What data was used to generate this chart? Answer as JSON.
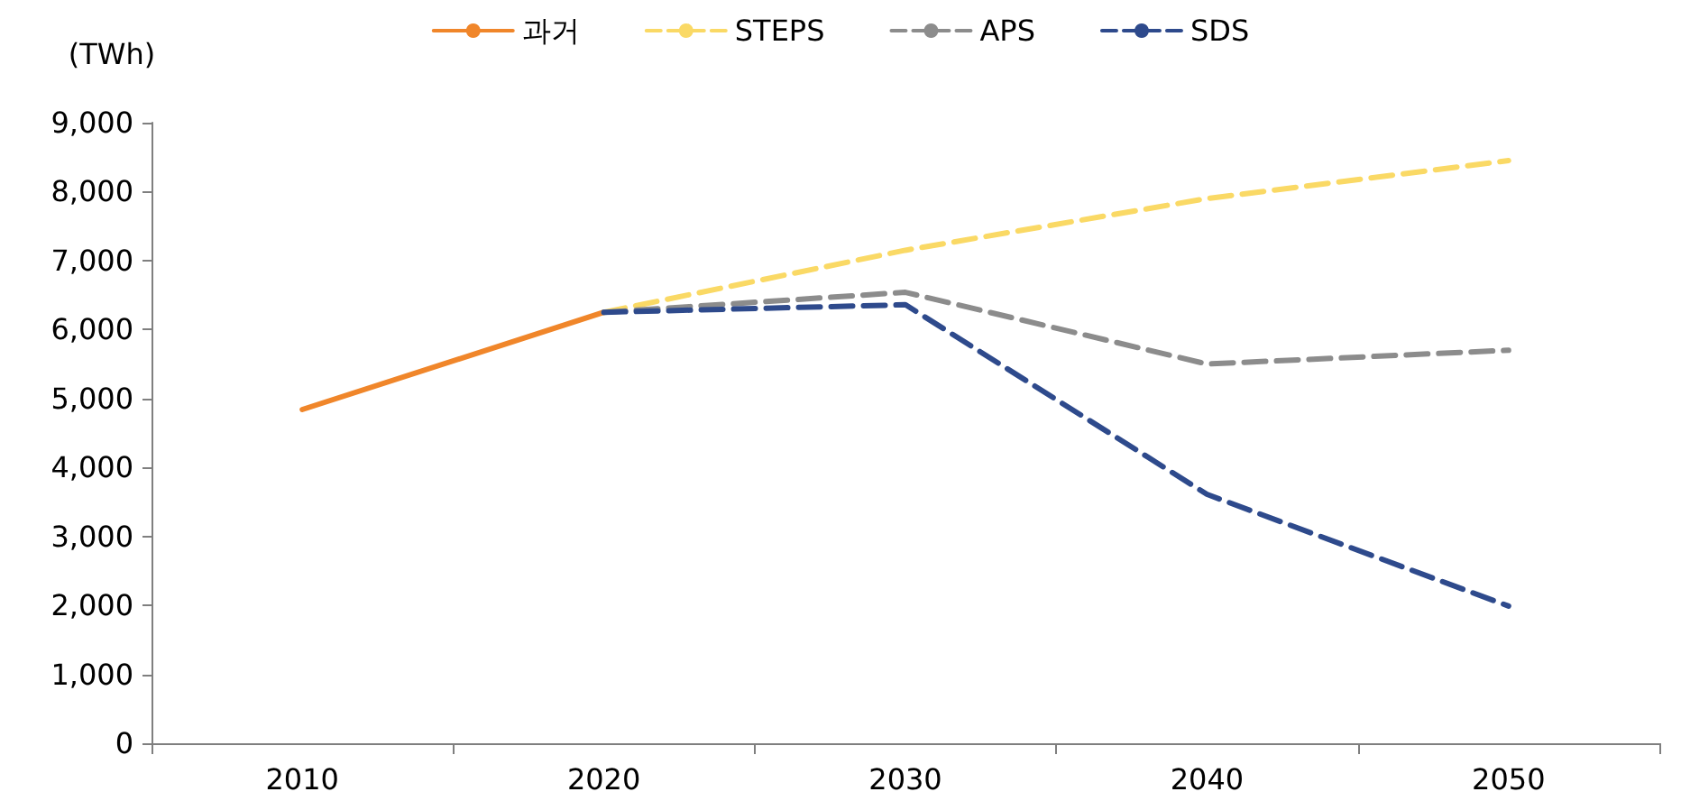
{
  "chart_data": {
    "type": "line",
    "ylabel": "(TWh)",
    "categories": [
      "2010",
      "2020",
      "2030",
      "2040",
      "2050"
    ],
    "series": [
      {
        "name": "과거",
        "color": "#f0862a",
        "line_style": "solid",
        "values": [
          4840,
          6250,
          null,
          null,
          null
        ]
      },
      {
        "name": "STEPS",
        "color": "#fad965",
        "line_style": "dashed",
        "values": [
          null,
          6250,
          7150,
          7900,
          8450
        ]
      },
      {
        "name": "APS",
        "color": "#8c8c8c",
        "line_style": "dashed",
        "values": [
          null,
          6250,
          6540,
          5500,
          5700
        ]
      },
      {
        "name": "SDS",
        "color": "#2e4a8c",
        "line_style": "dashed",
        "values": [
          null,
          6250,
          6360,
          3610,
          1990
        ]
      }
    ],
    "ylim": [
      0,
      9000
    ],
    "yticks": [
      0,
      {
        "value": 1000,
        "label": "1,000"
      },
      {
        "value": 2000,
        "label": "2,000"
      },
      {
        "value": 3000,
        "label": "3,000"
      },
      {
        "value": 4000,
        "label": "4,000"
      },
      {
        "value": 5000,
        "label": "5,000"
      },
      {
        "value": 6000,
        "label": "6,000"
      },
      {
        "value": 7000,
        "label": "7,000"
      },
      {
        "value": 8000,
        "label": "8,000"
      },
      {
        "value": 9000,
        "label": "9,000"
      }
    ],
    "grid": false,
    "legend": "top",
    "marker": "none"
  }
}
